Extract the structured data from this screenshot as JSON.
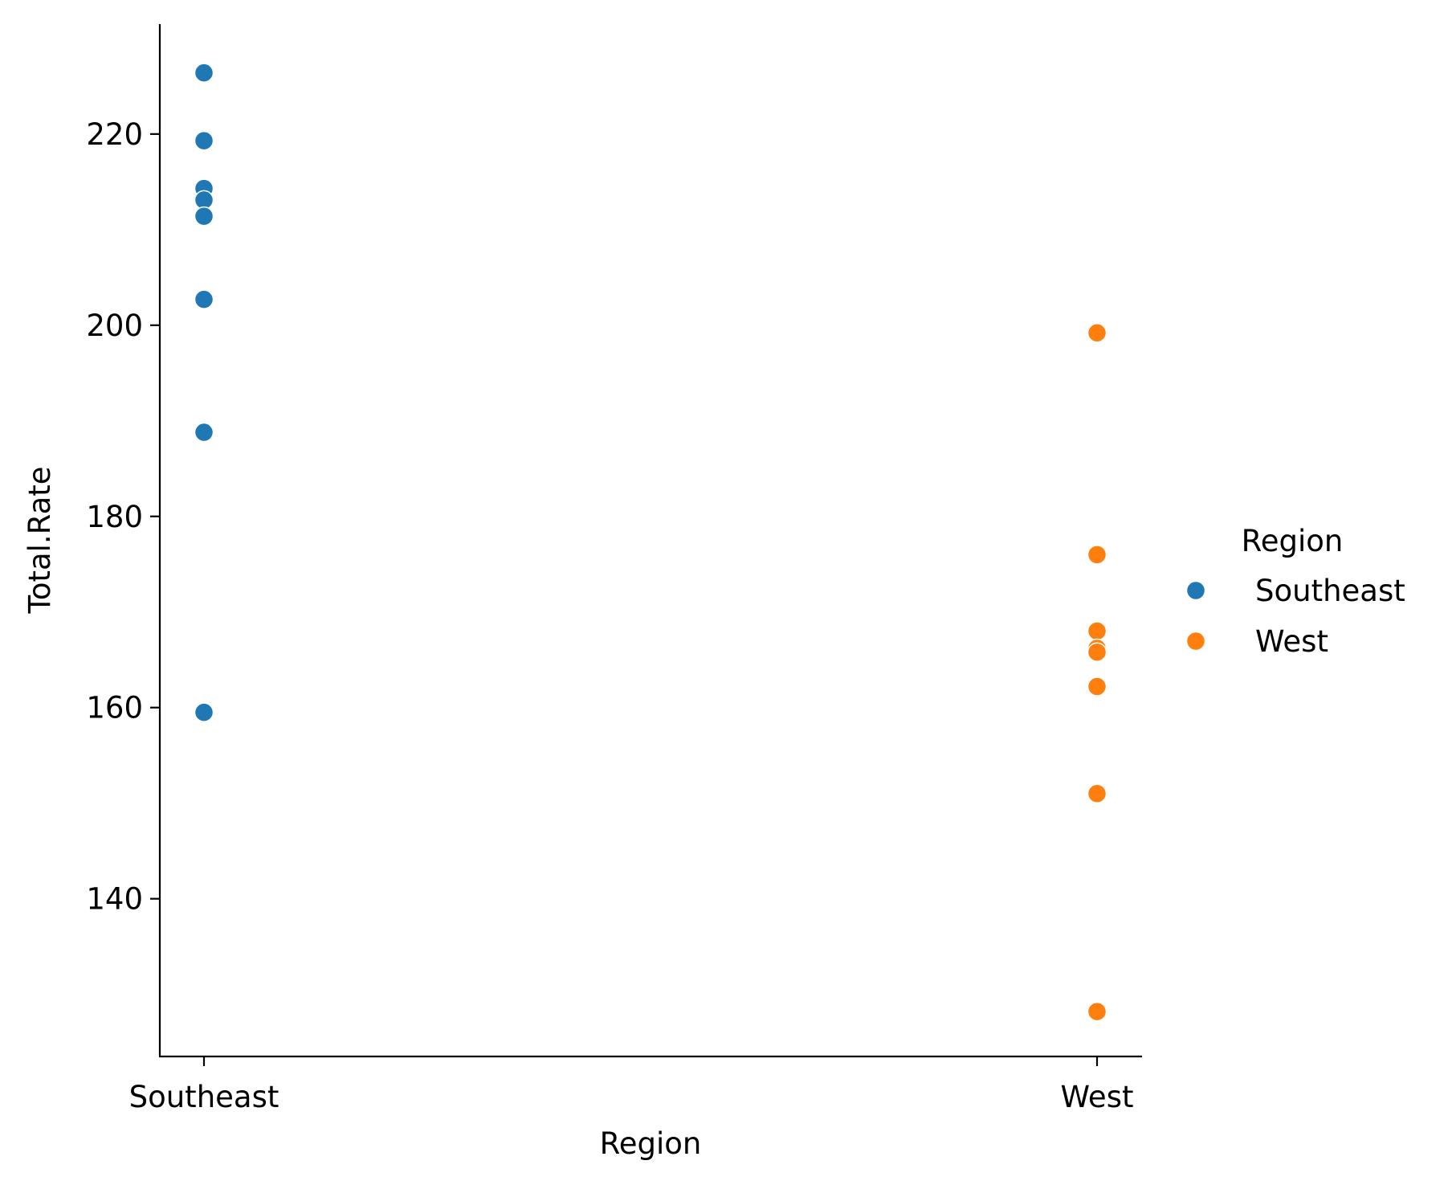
{
  "chart_data": {
    "type": "scatter",
    "title": "",
    "xlabel": "Region",
    "ylabel": "Total.Rate",
    "categories": [
      "Southeast",
      "West"
    ],
    "ylim": [
      123.5,
      231.5
    ],
    "yticks": [
      140,
      160,
      180,
      200,
      220
    ],
    "ytick_labels": [
      "140",
      "160",
      "180",
      "200",
      "220"
    ],
    "grid": false,
    "legend": {
      "title": "Region",
      "placement": "right",
      "entries": [
        "Southeast",
        "West"
      ]
    },
    "series": [
      {
        "name": "Southeast",
        "color": "#1f77b4",
        "points": [
          {
            "x": "Southeast",
            "y": 226.4
          },
          {
            "x": "Southeast",
            "y": 219.3
          },
          {
            "x": "Southeast",
            "y": 214.3
          },
          {
            "x": "Southeast",
            "y": 213.1
          },
          {
            "x": "Southeast",
            "y": 211.4
          },
          {
            "x": "Southeast",
            "y": 202.7
          },
          {
            "x": "Southeast",
            "y": 188.8
          },
          {
            "x": "Southeast",
            "y": 159.5
          }
        ]
      },
      {
        "name": "West",
        "color": "#ff7f0e",
        "points": [
          {
            "x": "West",
            "y": 199.2
          },
          {
            "x": "West",
            "y": 176.0
          },
          {
            "x": "West",
            "y": 168.0
          },
          {
            "x": "West",
            "y": 166.2
          },
          {
            "x": "West",
            "y": 165.8
          },
          {
            "x": "West",
            "y": 162.2
          },
          {
            "x": "West",
            "y": 151.0
          },
          {
            "x": "West",
            "y": 128.2
          }
        ]
      }
    ]
  }
}
